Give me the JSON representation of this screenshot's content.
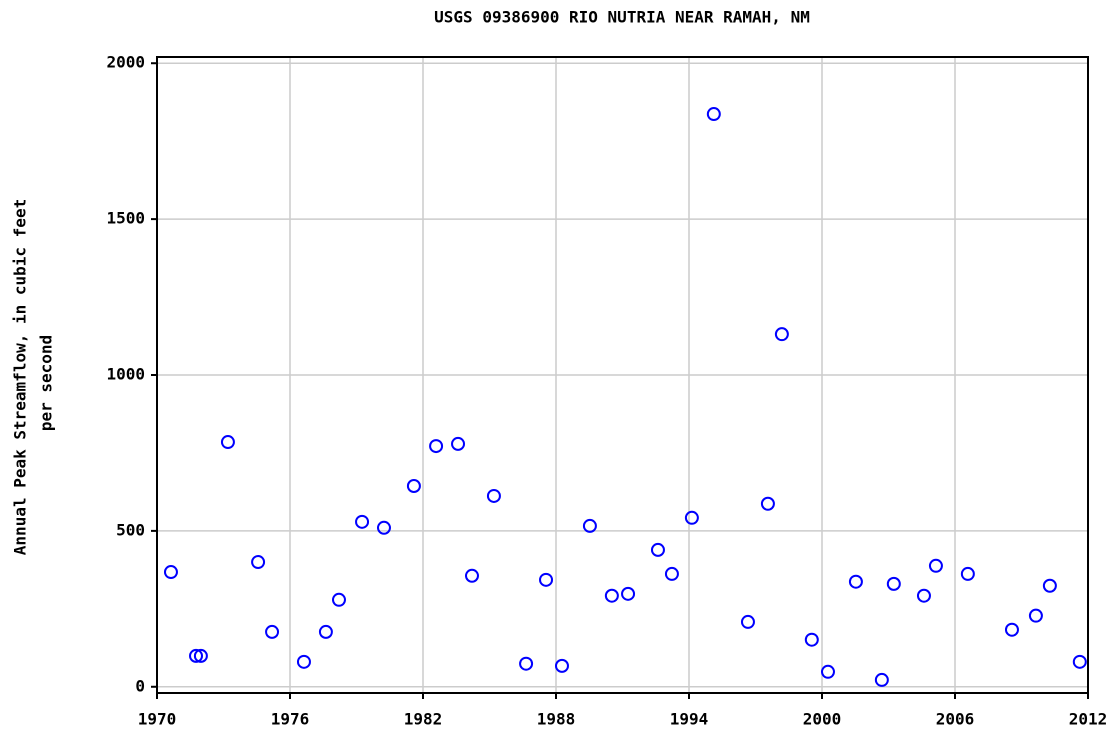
{
  "chart_data": {
    "type": "scatter",
    "title": "USGS 09386900 RIO NUTRIA NEAR RAMAH, NM",
    "ylabel": [
      "Annual Peak Streamflow, in cubic feet",
      "per second"
    ],
    "color": "#0000ff",
    "grid": true,
    "x": [
      1970.63,
      1971.76,
      1971.98,
      1973.2,
      1974.56,
      1975.19,
      1976.63,
      1977.62,
      1978.21,
      1979.25,
      1980.24,
      1981.59,
      1982.59,
      1983.58,
      1984.21,
      1985.2,
      1986.65,
      1987.55,
      1988.27,
      1989.53,
      1990.52,
      1991.25,
      1992.6,
      1993.23,
      1994.13,
      1995.12,
      1996.66,
      1997.56,
      1998.19,
      1999.54,
      2000.27,
      2001.53,
      2002.7,
      2003.24,
      2004.6,
      2005.14,
      2006.58,
      2008.57,
      2009.65,
      2010.28,
      2011.63
    ],
    "values": [
      368,
      99,
      99,
      785,
      400,
      176,
      80,
      176,
      279,
      529,
      510,
      644,
      772,
      779,
      356,
      612,
      74,
      343,
      67,
      516,
      292,
      298,
      439,
      362,
      542,
      1837,
      208,
      587,
      1131,
      151,
      48,
      337,
      22,
      330,
      292,
      388,
      362,
      183,
      228,
      324,
      80
    ],
    "xlim": [
      1970,
      2012
    ],
    "xticks": [
      1970,
      1976,
      1982,
      1988,
      1994,
      2000,
      2006,
      2012
    ],
    "ylim": [
      -20,
      2020
    ],
    "yticks": [
      0,
      500,
      1000,
      1500,
      2000
    ]
  }
}
